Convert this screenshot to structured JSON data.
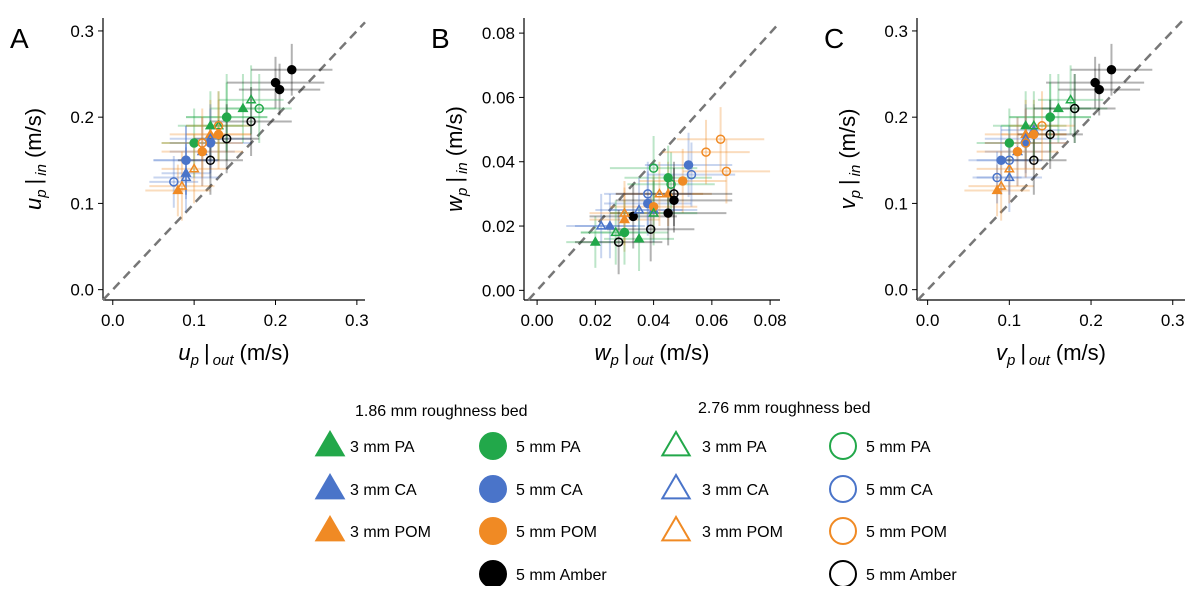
{
  "chart_data": [
    {
      "type": "scatter",
      "label": "A",
      "xlabel": {
        "symbol": "u",
        "subscript": "p",
        "bar": "|",
        "condition": "out",
        "unit": "(m/s)"
      },
      "ylabel": {
        "symbol": "u",
        "subscript": "p",
        "bar": "|",
        "condition": "in",
        "unit": "(m/s)"
      },
      "xlim": [
        -0.012,
        0.31
      ],
      "ylim": [
        -0.012,
        0.315
      ],
      "xticks": [
        {
          "value": 0,
          "label": "0.0"
        },
        0.1,
        0.2,
        0.3
      ],
      "yticks": [
        {
          "value": 0,
          "label": "0.0"
        },
        0.1,
        0.2,
        0.3
      ],
      "identity_line": true,
      "series": [
        {
          "x": [
            0.16,
            0.12
          ],
          "values": [
            0.21,
            0.19
          ],
          "xerr": [
            0.04,
            0.04
          ],
          "yerr": [
            0.04,
            0.04
          ]
        },
        {
          "x": [
            0.11,
            0.09
          ],
          "values": [
            0.16,
            0.135
          ],
          "xerr": [
            0.04,
            0.03
          ],
          "yerr": [
            0.04,
            0.03
          ]
        },
        {
          "x": [
            0.08,
            0.12
          ],
          "values": [
            0.115,
            0.18
          ],
          "xerr": [
            0.04,
            0.05
          ],
          "yerr": [
            0.03,
            0.04
          ]
        },
        {
          "x": [
            0.14,
            0.1
          ],
          "values": [
            0.2,
            0.17
          ],
          "xerr": [
            0.05,
            0.04
          ],
          "yerr": [
            0.05,
            0.04
          ]
        },
        {
          "x": [
            0.12,
            0.09
          ],
          "values": [
            0.17,
            0.15
          ],
          "xerr": [
            0.05,
            0.04
          ],
          "yerr": [
            0.04,
            0.04
          ]
        },
        {
          "x": [
            0.11,
            0.13
          ],
          "values": [
            0.16,
            0.18
          ],
          "xerr": [
            0.05,
            0.04
          ],
          "yerr": [
            0.04,
            0.04
          ]
        },
        {
          "x": [
            0.22,
            0.2,
            0.205
          ],
          "values": [
            0.255,
            0.24,
            0.232
          ],
          "xerr": [
            0.05,
            0.06,
            0.05
          ],
          "yerr": [
            0.03,
            0.03,
            0.03
          ]
        },
        {
          "x": [
            0.17,
            0.13
          ],
          "values": [
            0.22,
            0.19
          ],
          "xerr": [
            0.04,
            0.04
          ],
          "yerr": [
            0.04,
            0.04
          ]
        },
        {
          "x": [
            0.09,
            0.12
          ],
          "values": [
            0.13,
            0.175
          ],
          "xerr": [
            0.04,
            0.05
          ],
          "yerr": [
            0.04,
            0.04
          ]
        },
        {
          "x": [
            0.085,
            0.1
          ],
          "values": [
            0.12,
            0.14
          ],
          "xerr": [
            0.04,
            0.04
          ],
          "yerr": [
            0.04,
            0.04
          ]
        },
        {
          "x": [
            0.18,
            0.14
          ],
          "values": [
            0.21,
            0.2
          ],
          "xerr": [
            0.04,
            0.05
          ],
          "yerr": [
            0.04,
            0.04
          ]
        },
        {
          "x": [
            0.075,
            0.09
          ],
          "values": [
            0.125,
            0.15
          ],
          "xerr": [
            0.03,
            0.04
          ],
          "yerr": [
            0.03,
            0.04
          ]
        },
        {
          "x": [
            0.11,
            0.13
          ],
          "values": [
            0.17,
            0.19
          ],
          "xerr": [
            0.05,
            0.04
          ],
          "yerr": [
            0.04,
            0.04
          ]
        },
        {
          "x": [
            0.17,
            0.14,
            0.12
          ],
          "values": [
            0.195,
            0.175,
            0.15
          ],
          "xerr": [
            0.05,
            0.04,
            0.04
          ],
          "yerr": [
            0.04,
            0.04,
            0.04
          ]
        }
      ]
    },
    {
      "type": "scatter",
      "label": "B",
      "xlabel": {
        "symbol": "w",
        "subscript": "p",
        "bar": "|",
        "condition": "out",
        "unit": "(m/s)"
      },
      "ylabel": {
        "symbol": "w",
        "subscript": "p",
        "bar": "|",
        "condition": "in",
        "unit": "(m/s)"
      },
      "xlim": [
        -0.0045,
        0.0834
      ],
      "ylim": [
        -0.003,
        0.0847
      ],
      "xticks": [
        {
          "value": 0,
          "label": "0.00"
        },
        0.02,
        0.04,
        0.06,
        0.08
      ],
      "yticks": [
        {
          "value": 0,
          "label": "0.00"
        },
        0.02,
        0.04,
        0.06,
        0.08
      ],
      "identity_line": true,
      "series": [
        {
          "x": [
            0.02,
            0.035
          ],
          "values": [
            0.015,
            0.016
          ],
          "xerr": [
            0.01,
            0.012
          ],
          "yerr": [
            0.008,
            0.01
          ]
        },
        {
          "x": [
            0.025,
            0.04
          ],
          "values": [
            0.02,
            0.025
          ],
          "xerr": [
            0.012,
            0.015
          ],
          "yerr": [
            0.01,
            0.01
          ]
        },
        {
          "x": [
            0.03,
            0.045
          ],
          "values": [
            0.022,
            0.03
          ],
          "xerr": [
            0.012,
            0.015
          ],
          "yerr": [
            0.01,
            0.01
          ]
        },
        {
          "x": [
            0.03,
            0.045
          ],
          "values": [
            0.018,
            0.035
          ],
          "xerr": [
            0.015,
            0.015
          ],
          "yerr": [
            0.01,
            0.01
          ]
        },
        {
          "x": [
            0.052,
            0.038
          ],
          "values": [
            0.039,
            0.027
          ],
          "xerr": [
            0.015,
            0.015
          ],
          "yerr": [
            0.01,
            0.01
          ]
        },
        {
          "x": [
            0.04,
            0.05
          ],
          "values": [
            0.026,
            0.034
          ],
          "xerr": [
            0.015,
            0.015
          ],
          "yerr": [
            0.01,
            0.01
          ]
        },
        {
          "x": [
            0.047,
            0.045,
            0.033
          ],
          "values": [
            0.028,
            0.024,
            0.023
          ],
          "xerr": [
            0.02,
            0.02,
            0.015
          ],
          "yerr": [
            0.01,
            0.01,
            0.01
          ]
        },
        {
          "x": [
            0.027,
            0.04
          ],
          "values": [
            0.018,
            0.024
          ],
          "xerr": [
            0.012,
            0.015
          ],
          "yerr": [
            0.01,
            0.01
          ]
        },
        {
          "x": [
            0.022,
            0.035
          ],
          "values": [
            0.02,
            0.025
          ],
          "xerr": [
            0.012,
            0.015
          ],
          "yerr": [
            0.01,
            0.01
          ]
        },
        {
          "x": [
            0.03,
            0.042
          ],
          "values": [
            0.024,
            0.03
          ],
          "xerr": [
            0.012,
            0.015
          ],
          "yerr": [
            0.01,
            0.01
          ]
        },
        {
          "x": [
            0.04,
            0.046
          ],
          "values": [
            0.038,
            0.033
          ],
          "xerr": [
            0.015,
            0.015
          ],
          "yerr": [
            0.01,
            0.01
          ]
        },
        {
          "x": [
            0.053,
            0.038
          ],
          "values": [
            0.036,
            0.03
          ],
          "xerr": [
            0.015,
            0.015
          ],
          "yerr": [
            0.01,
            0.01
          ]
        },
        {
          "x": [
            0.063,
            0.058,
            0.065
          ],
          "values": [
            0.047,
            0.043,
            0.037
          ],
          "xerr": [
            0.015,
            0.015,
            0.015
          ],
          "yerr": [
            0.01,
            0.01,
            0.01
          ]
        },
        {
          "x": [
            0.028,
            0.039,
            0.047
          ],
          "values": [
            0.015,
            0.019,
            0.03
          ],
          "xerr": [
            0.015,
            0.015,
            0.02
          ],
          "yerr": [
            0.01,
            0.01,
            0.01
          ]
        }
      ]
    },
    {
      "type": "scatter",
      "label": "C",
      "xlabel": {
        "symbol": "v",
        "subscript": "p",
        "bar": "|",
        "condition": "out",
        "unit": "(m/s)"
      },
      "ylabel": {
        "symbol": "v",
        "subscript": "p",
        "bar": "|",
        "condition": "in",
        "unit": "(m/s)"
      },
      "xlim": [
        -0.013,
        0.315
      ],
      "ylim": [
        -0.012,
        0.315
      ],
      "xticks": [
        {
          "value": 0,
          "label": "0.0"
        },
        0.1,
        0.2,
        0.3
      ],
      "yticks": [
        {
          "value": 0,
          "label": "0.0"
        },
        0.1,
        0.2,
        0.3
      ],
      "identity_line": true,
      "series": [
        {
          "x": [
            0.16,
            0.12
          ],
          "values": [
            0.21,
            0.19
          ],
          "xerr": [
            0.04,
            0.04
          ],
          "yerr": [
            0.04,
            0.04
          ]
        },
        {
          "x": [
            0.11,
            0.13
          ],
          "values": [
            0.16,
            0.185
          ],
          "xerr": [
            0.04,
            0.04
          ],
          "yerr": [
            0.04,
            0.03
          ]
        },
        {
          "x": [
            0.085,
            0.12
          ],
          "values": [
            0.115,
            0.18
          ],
          "xerr": [
            0.04,
            0.05
          ],
          "yerr": [
            0.03,
            0.04
          ]
        },
        {
          "x": [
            0.15,
            0.1
          ],
          "values": [
            0.2,
            0.17
          ],
          "xerr": [
            0.05,
            0.04
          ],
          "yerr": [
            0.05,
            0.04
          ]
        },
        {
          "x": [
            0.12,
            0.09
          ],
          "values": [
            0.17,
            0.15
          ],
          "xerr": [
            0.05,
            0.04
          ],
          "yerr": [
            0.04,
            0.04
          ]
        },
        {
          "x": [
            0.11,
            0.13
          ],
          "values": [
            0.16,
            0.18
          ],
          "xerr": [
            0.05,
            0.04
          ],
          "yerr": [
            0.04,
            0.04
          ]
        },
        {
          "x": [
            0.225,
            0.205,
            0.21
          ],
          "values": [
            0.255,
            0.24,
            0.232
          ],
          "xerr": [
            0.05,
            0.06,
            0.05
          ],
          "yerr": [
            0.03,
            0.03,
            0.03
          ]
        },
        {
          "x": [
            0.175,
            0.13
          ],
          "values": [
            0.22,
            0.19
          ],
          "xerr": [
            0.04,
            0.04
          ],
          "yerr": [
            0.04,
            0.04
          ]
        },
        {
          "x": [
            0.1,
            0.12
          ],
          "values": [
            0.13,
            0.175
          ],
          "xerr": [
            0.04,
            0.05
          ],
          "yerr": [
            0.04,
            0.04
          ]
        },
        {
          "x": [
            0.09,
            0.1
          ],
          "values": [
            0.12,
            0.14
          ],
          "xerr": [
            0.04,
            0.04
          ],
          "yerr": [
            0.04,
            0.04
          ]
        },
        {
          "x": [
            0.18,
            0.15
          ],
          "values": [
            0.21,
            0.2
          ],
          "xerr": [
            0.04,
            0.05
          ],
          "yerr": [
            0.04,
            0.04
          ]
        },
        {
          "x": [
            0.085,
            0.1
          ],
          "values": [
            0.13,
            0.15
          ],
          "xerr": [
            0.03,
            0.04
          ],
          "yerr": [
            0.03,
            0.04
          ]
        },
        {
          "x": [
            0.12,
            0.14
          ],
          "values": [
            0.17,
            0.19
          ],
          "xerr": [
            0.05,
            0.04
          ],
          "yerr": [
            0.04,
            0.04
          ]
        },
        {
          "x": [
            0.18,
            0.15,
            0.13
          ],
          "values": [
            0.21,
            0.18,
            0.15
          ],
          "xerr": [
            0.05,
            0.04,
            0.04
          ],
          "yerr": [
            0.04,
            0.04,
            0.04
          ]
        }
      ]
    }
  ],
  "legend": {
    "groups": [
      {
        "title": "1.86 mm roughness bed",
        "items": [
          {
            "name": "3 mm PA",
            "color": "#22a84a",
            "marker": "triangle",
            "filled": true
          },
          {
            "name": "3 mm CA",
            "color": "#4a74c9",
            "marker": "triangle",
            "filled": true
          },
          {
            "name": "3 mm POM",
            "color": "#f08a24",
            "marker": "triangle",
            "filled": true
          },
          {
            "name": "5 mm PA",
            "color": "#22a84a",
            "marker": "circle",
            "filled": true
          },
          {
            "name": "5 mm CA",
            "color": "#4a74c9",
            "marker": "circle",
            "filled": true
          },
          {
            "name": "5 mm POM",
            "color": "#f08a24",
            "marker": "circle",
            "filled": true
          },
          {
            "name": "5 mm Amber",
            "color": "#000000",
            "marker": "circle",
            "filled": true
          }
        ]
      },
      {
        "title": "2.76 mm roughness bed",
        "items": [
          {
            "name": "3 mm PA",
            "color": "#22a84a",
            "marker": "triangle",
            "filled": false
          },
          {
            "name": "3 mm CA",
            "color": "#4a74c9",
            "marker": "triangle",
            "filled": false
          },
          {
            "name": "3 mm POM",
            "color": "#f08a24",
            "marker": "triangle",
            "filled": false
          },
          {
            "name": "5 mm PA",
            "color": "#22a84a",
            "marker": "circle",
            "filled": false
          },
          {
            "name": "5 mm CA",
            "color": "#4a74c9",
            "marker": "circle",
            "filled": false
          },
          {
            "name": "5 mm POM",
            "color": "#f08a24",
            "marker": "circle",
            "filled": false
          },
          {
            "name": "5 mm Amber",
            "color": "#000000",
            "marker": "circle",
            "filled": false
          }
        ]
      }
    ]
  }
}
